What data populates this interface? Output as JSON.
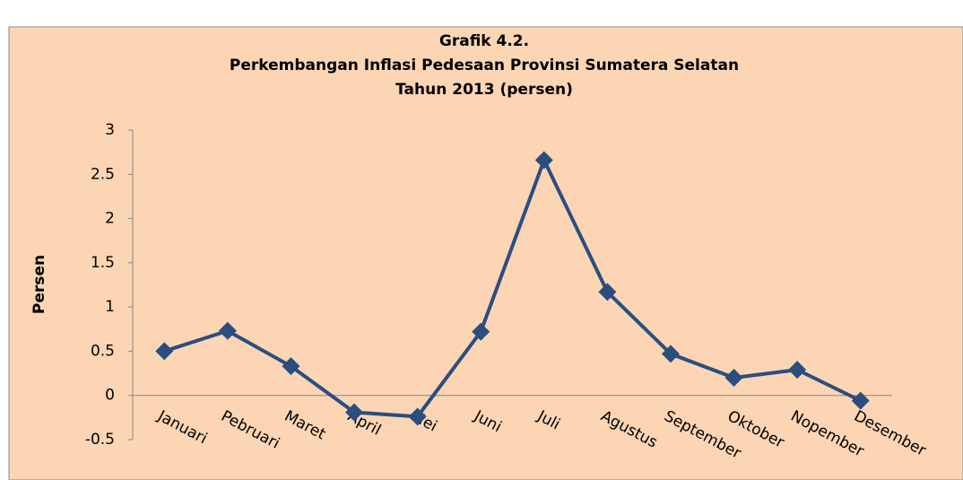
{
  "chart_data": {
    "type": "line",
    "title": "Grafik 4.2.",
    "subtitle": [
      "Perkembangan  Inflasi  Pedesaan  Provinsi  Sumatera  Selatan",
      "Tahun  2013  (persen)"
    ],
    "y_label": "Persen",
    "categories": [
      "Januari",
      "Pebruari",
      "Maret",
      "April",
      "Mei",
      "Juni",
      "Juli",
      "Agustus",
      "September",
      "Oktober",
      "Nopember",
      "Desember"
    ],
    "series": [
      {
        "name": "Inflasi Pedesaan",
        "color": "#2b4e7f",
        "values": [
          0.5,
          0.73,
          0.33,
          -0.19,
          -0.24,
          0.72,
          2.66,
          1.17,
          0.47,
          0.2,
          0.29,
          -0.06
        ]
      }
    ],
    "ylim": [
      -0.5,
      3
    ],
    "yticks": [
      -0.5,
      0,
      0.5,
      1,
      1.5,
      2,
      2.5,
      3
    ],
    "legend": false,
    "grid": false
  }
}
